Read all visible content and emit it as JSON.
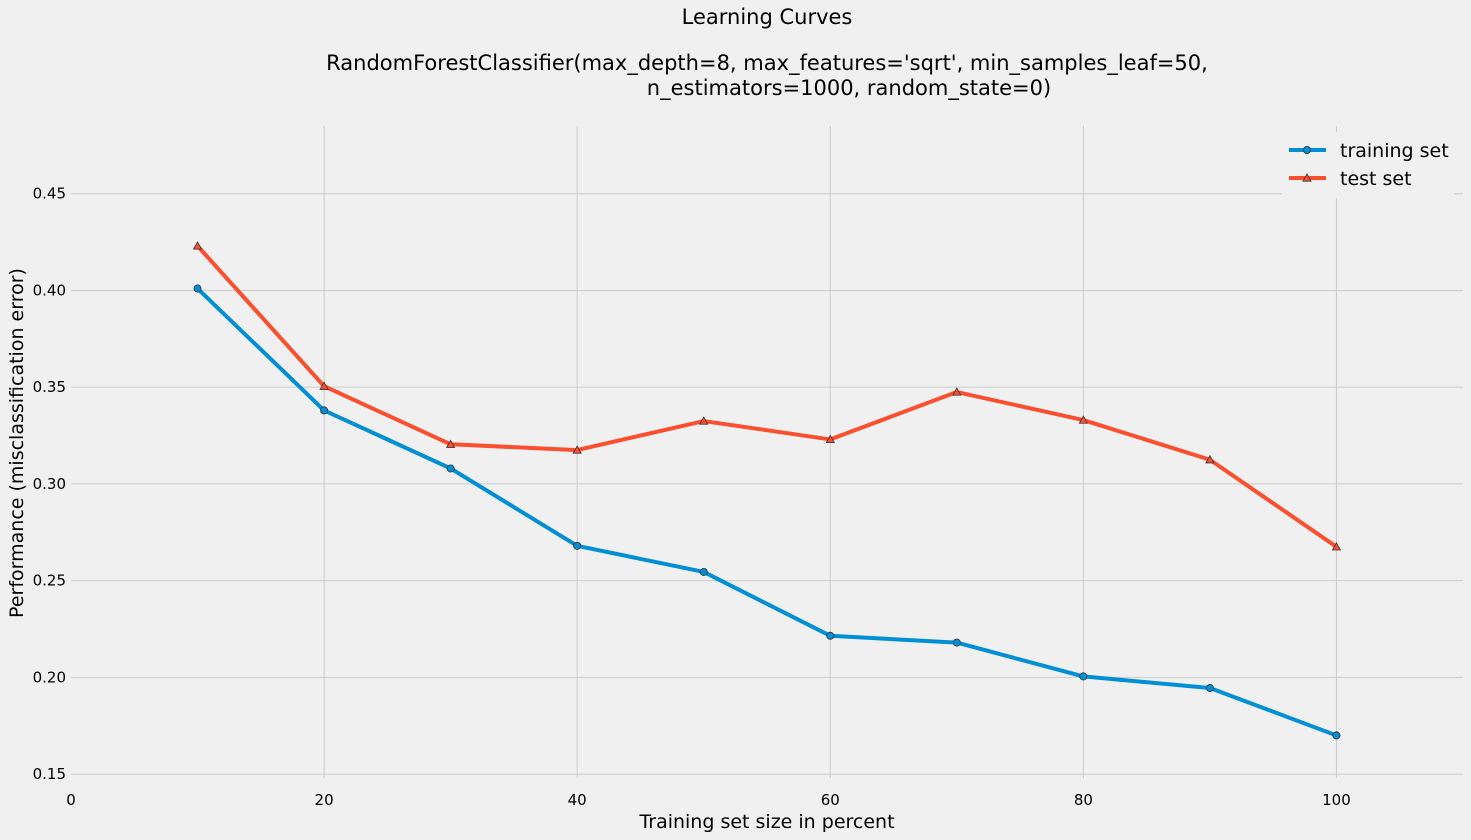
{
  "chart_data": {
    "type": "line",
    "title_line1": "Learning Curves",
    "title_line2": "RandomForestClassifier(max_depth=8, max_features='sqrt', min_samples_leaf=50,",
    "title_line3": "n_estimators=1000, random_state=0)",
    "xlabel": "Training set size in percent",
    "ylabel": "Performance (misclassification error)",
    "xlim": [
      0,
      110
    ],
    "ylim": [
      0.148,
      0.485
    ],
    "x_ticks": [
      0,
      20,
      40,
      60,
      80,
      100
    ],
    "y_ticks": [
      0.15,
      0.2,
      0.25,
      0.3,
      0.35,
      0.4,
      0.45
    ],
    "x_tick_labels": [
      "0",
      "20",
      "40",
      "60",
      "80",
      "100"
    ],
    "y_tick_labels": [
      "0.15",
      "0.20",
      "0.25",
      "0.30",
      "0.35",
      "0.40",
      "0.45"
    ],
    "grid": true,
    "legend_position": "top-right",
    "x": [
      10,
      20,
      30,
      40,
      50,
      60,
      70,
      80,
      90,
      100
    ],
    "series": [
      {
        "name": "training set",
        "color": "#008fd5",
        "marker": "circle",
        "values": [
          0.401,
          0.338,
          0.308,
          0.268,
          0.2545,
          0.2215,
          0.218,
          0.2005,
          0.1945,
          0.17
        ]
      },
      {
        "name": "test set",
        "color": "#fc4f30",
        "marker": "triangle",
        "values": [
          0.423,
          0.3505,
          0.3205,
          0.3175,
          0.3325,
          0.323,
          0.3475,
          0.333,
          0.3125,
          0.2675
        ]
      }
    ]
  }
}
